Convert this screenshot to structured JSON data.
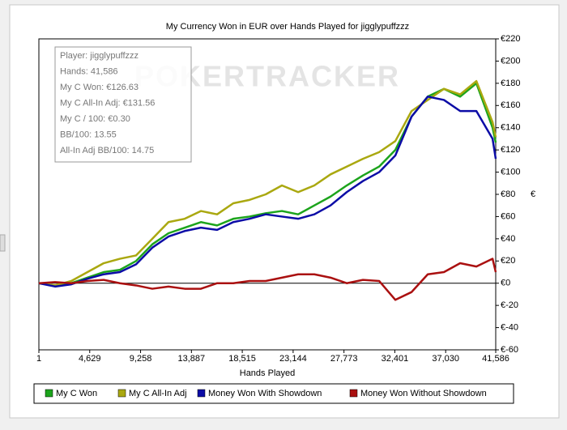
{
  "chart_data": {
    "type": "line",
    "title": "My Currency Won in EUR over Hands Played for jigglypuffzzz",
    "watermark": "POKERTRACKER",
    "xlabel": "Hands Played",
    "ylabel": "€",
    "xlim": [
      1,
      41586
    ],
    "ylim": [
      -60,
      220
    ],
    "xticks": [
      1,
      {
        "value": 4629,
        "label": "4,629"
      },
      {
        "value": 9258,
        "label": "9,258"
      },
      {
        "value": 13887,
        "label": "13,887"
      },
      {
        "value": 18515,
        "label": "18,515"
      },
      {
        "value": 23144,
        "label": "23,144"
      },
      {
        "value": 27773,
        "label": "27,773"
      },
      {
        "value": 32401,
        "label": "32,401"
      },
      {
        "value": 37030,
        "label": "37,030"
      },
      {
        "value": 41586,
        "label": "41,586"
      }
    ],
    "yticks": [
      {
        "value": 220,
        "label": "€220"
      },
      {
        "value": 200,
        "label": "€200"
      },
      {
        "value": 180,
        "label": "€180"
      },
      {
        "value": 160,
        "label": "€160"
      },
      {
        "value": 140,
        "label": "€140"
      },
      {
        "value": 120,
        "label": "€120"
      },
      {
        "value": 100,
        "label": "€100"
      },
      {
        "value": 80,
        "label": "€80"
      },
      {
        "value": 60,
        "label": "€60"
      },
      {
        "value": 40,
        "label": "€40"
      },
      {
        "value": 20,
        "label": "€20"
      },
      {
        "value": 0,
        "label": "€0"
      },
      {
        "value": -20,
        "label": "€-20"
      },
      {
        "value": -40,
        "label": "€-40"
      },
      {
        "value": -60,
        "label": "€-60"
      }
    ],
    "x": [
      1,
      1475,
      2950,
      4425,
      5900,
      7375,
      8850,
      10325,
      11800,
      13275,
      14750,
      16225,
      17700,
      19175,
      20650,
      22125,
      23600,
      25075,
      26550,
      28025,
      29500,
      30975,
      32450,
      33925,
      35400,
      36875,
      38350,
      39825,
      41300,
      41586
    ],
    "series": [
      {
        "name": "My C Won",
        "color": "#1ca41c",
        "values": [
          0,
          -2,
          0,
          5,
          10,
          12,
          20,
          35,
          45,
          50,
          55,
          52,
          58,
          60,
          63,
          65,
          62,
          70,
          78,
          88,
          97,
          105,
          120,
          150,
          168,
          175,
          168,
          180,
          140,
          126.63
        ]
      },
      {
        "name": "My C All-In Adj",
        "color": "#aaa810",
        "values": [
          0,
          -2,
          2,
          10,
          18,
          22,
          25,
          40,
          55,
          58,
          65,
          62,
          72,
          75,
          80,
          88,
          82,
          88,
          98,
          105,
          112,
          118,
          128,
          155,
          165,
          175,
          170,
          182,
          145,
          131.56
        ]
      },
      {
        "name": "Money Won With Showdown",
        "color": "#0c0ca6",
        "values": [
          0,
          -3,
          -1,
          4,
          8,
          10,
          17,
          32,
          42,
          47,
          50,
          48,
          55,
          58,
          62,
          60,
          58,
          62,
          70,
          82,
          92,
          100,
          115,
          150,
          168,
          165,
          155,
          155,
          130,
          112
        ]
      },
      {
        "name": "Money Won Without Showdown",
        "color": "#aa1010",
        "values": [
          0,
          1,
          0,
          2,
          3,
          0,
          -2,
          -5,
          -3,
          -5,
          -5,
          0,
          0,
          2,
          2,
          5,
          8,
          8,
          5,
          0,
          3,
          2,
          -15,
          -8,
          8,
          10,
          18,
          15,
          22,
          10
        ]
      }
    ],
    "tooltip": [
      "Player: jigglypuffzzz",
      "Hands: 41,586",
      "My C Won: €126.63",
      "My C All-In Adj: €131.56",
      "My C / 100: €0.30",
      "BB/100: 13.55",
      "All-In Adj BB/100: 14.75"
    ]
  }
}
